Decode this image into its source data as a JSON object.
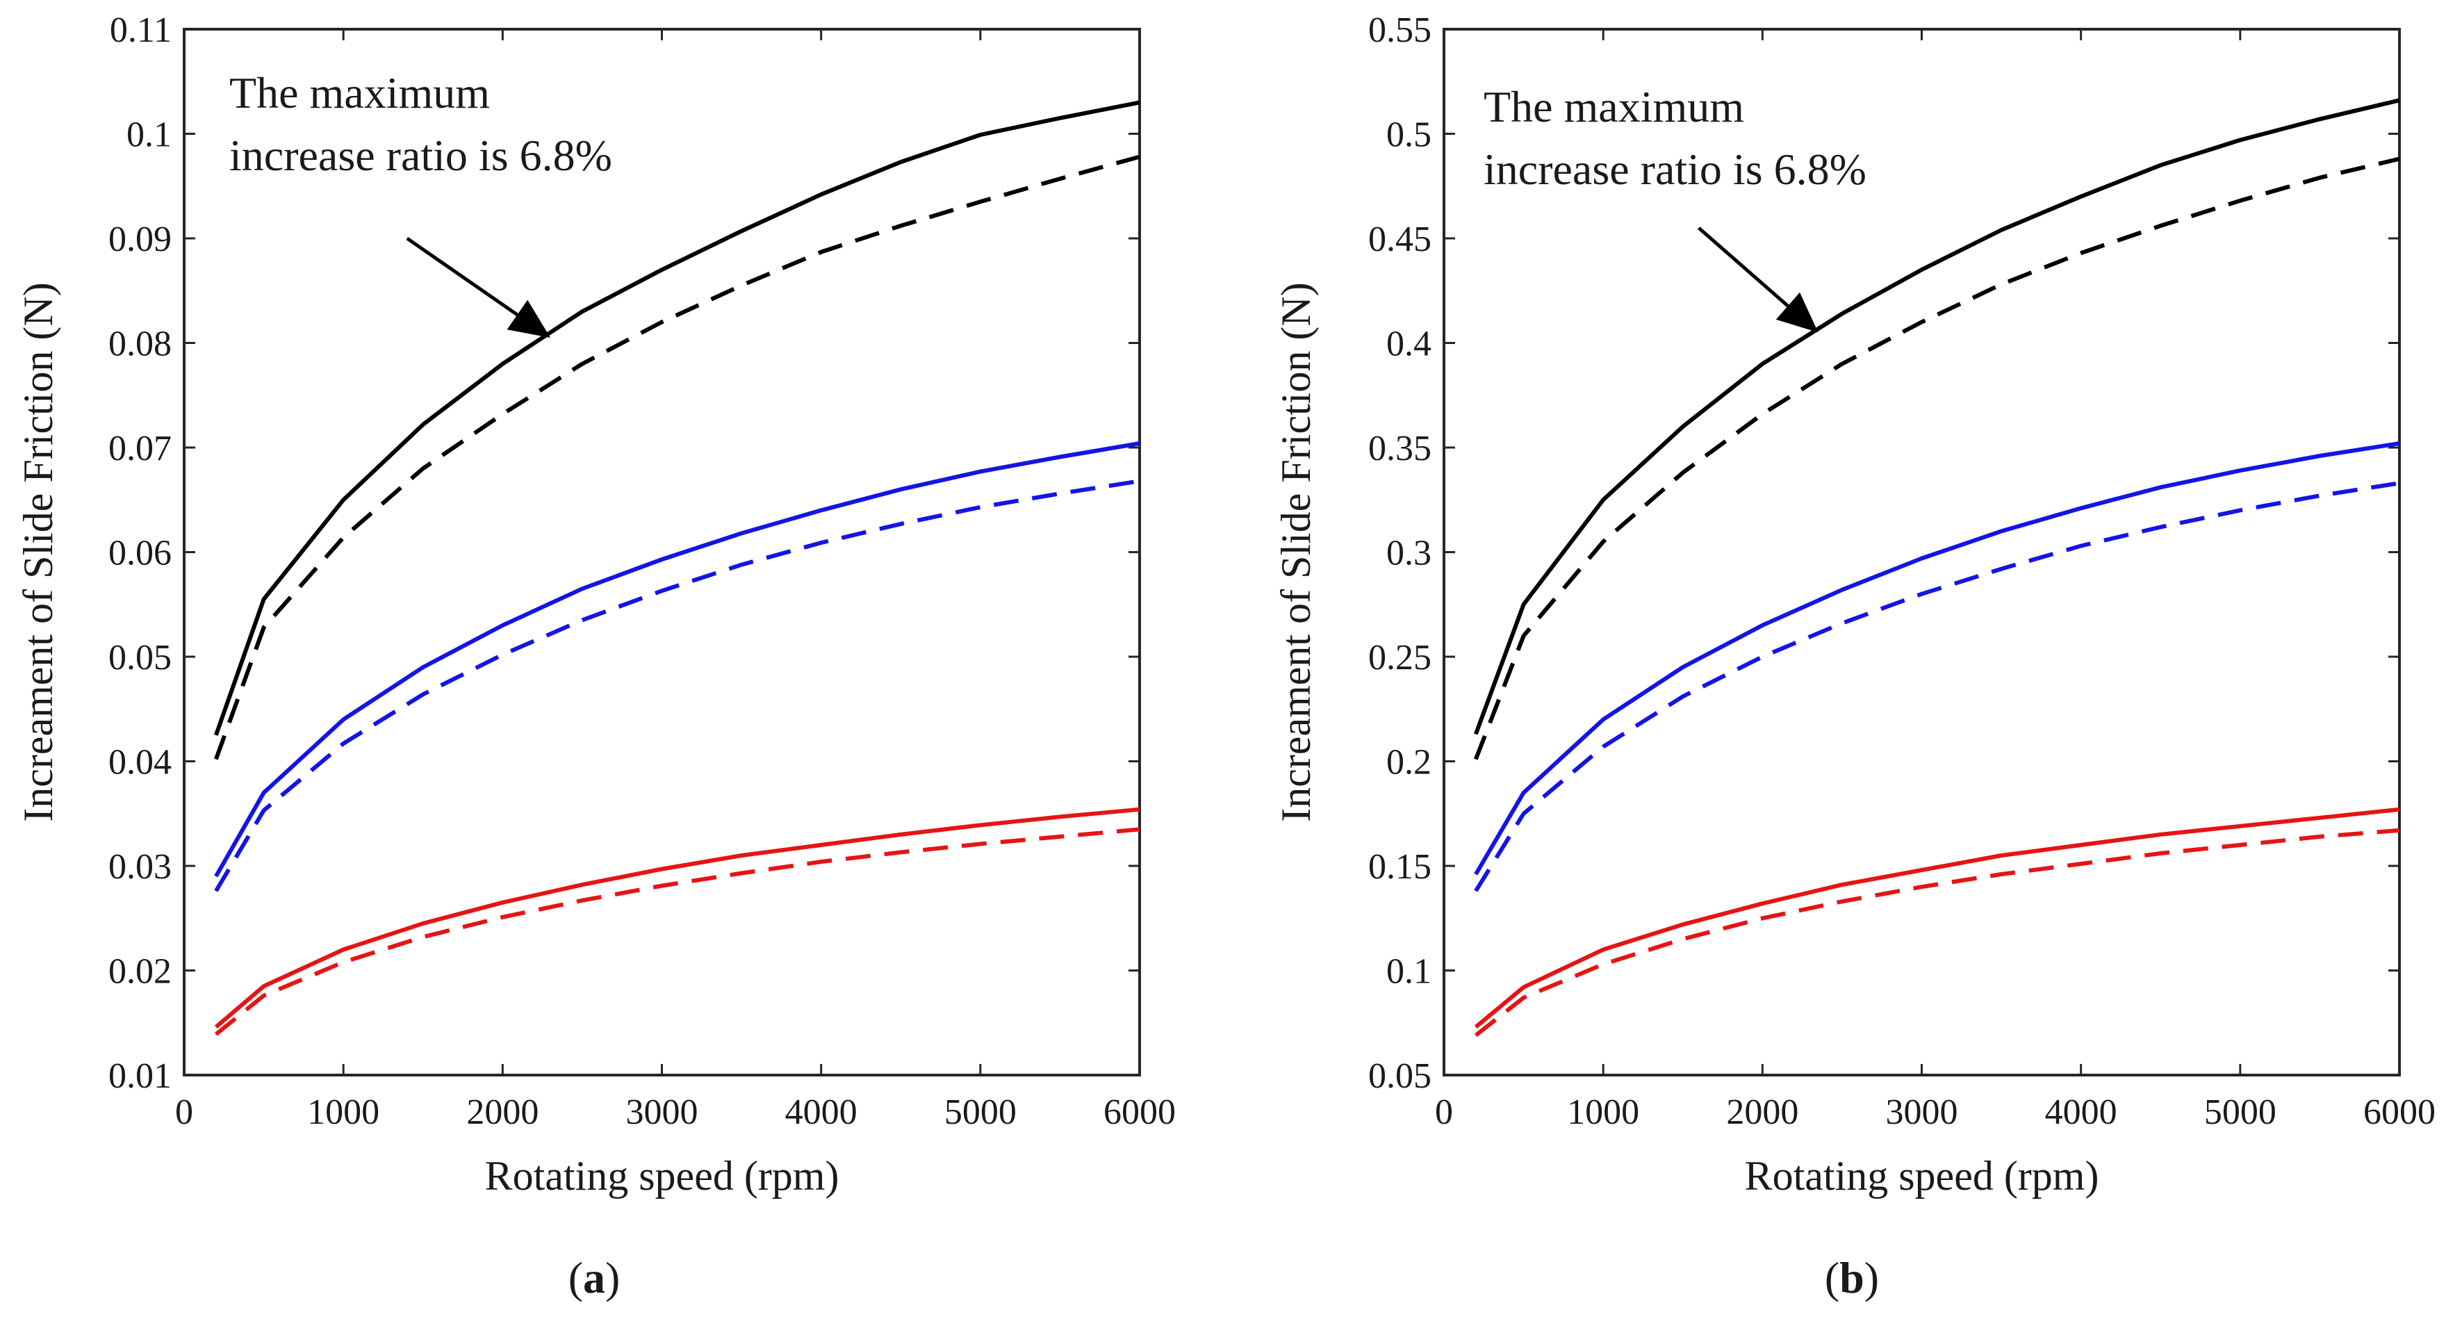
{
  "chart_data": [
    {
      "type": "line",
      "panel_label": "a",
      "xlabel": "Rotating speed (rpm)",
      "ylabel": "Increament of Slide Friction  (N)",
      "xlim": [
        0,
        6000
      ],
      "ylim": [
        0.01,
        0.11
      ],
      "x_ticks": [
        0,
        1000,
        2000,
        3000,
        4000,
        5000,
        6000
      ],
      "x_tick_labels": [
        "0",
        "1000",
        "2000",
        "3000",
        "4000",
        "5000",
        "6000"
      ],
      "y_ticks": [
        0.01,
        0.02,
        0.03,
        0.04,
        0.05,
        0.06,
        0.07,
        0.08,
        0.09,
        0.1,
        0.11
      ],
      "y_tick_labels": [
        "0.01",
        "0.02",
        "0.03",
        "0.04",
        "0.05",
        "0.06",
        "0.07",
        "0.08",
        "0.09",
        "0.1",
        "0.11"
      ],
      "grid": false,
      "annotation": {
        "lines": [
          "The maximum",
          "increase ratio is 6.8%"
        ],
        "arrow_from": [
          1400,
          0.09
        ],
        "arrow_to": [
          2300,
          0.0805
        ]
      },
      "x": [
        200,
        500,
        1000,
        1500,
        2000,
        2500,
        3000,
        3500,
        4000,
        4500,
        5000,
        5500,
        6000
      ],
      "series": [
        {
          "name": "black-solid",
          "color": "#000000",
          "dash": false,
          "values": [
            0.0425,
            0.0555,
            0.065,
            0.0722,
            0.078,
            0.083,
            0.087,
            0.0907,
            0.0942,
            0.0973,
            0.0999,
            0.1015,
            0.103
          ]
        },
        {
          "name": "black-dashed",
          "color": "#000000",
          "dash": true,
          "values": [
            0.0402,
            0.0528,
            0.0614,
            0.068,
            0.0732,
            0.078,
            0.082,
            0.0855,
            0.0887,
            0.0912,
            0.0935,
            0.0957,
            0.0978
          ]
        },
        {
          "name": "blue-solid",
          "color": "#1414e6",
          "dash": false,
          "values": [
            0.029,
            0.037,
            0.044,
            0.049,
            0.053,
            0.0565,
            0.0593,
            0.0618,
            0.064,
            0.066,
            0.0677,
            0.0691,
            0.0704
          ]
        },
        {
          "name": "blue-dashed",
          "color": "#1414e6",
          "dash": true,
          "values": [
            0.0276,
            0.0353,
            0.0417,
            0.0464,
            0.0502,
            0.0535,
            0.0563,
            0.0588,
            0.0609,
            0.0627,
            0.0643,
            0.0656,
            0.0668
          ]
        },
        {
          "name": "red-solid",
          "color": "#e61414",
          "dash": false,
          "values": [
            0.0146,
            0.0185,
            0.022,
            0.0245,
            0.0265,
            0.0282,
            0.0297,
            0.031,
            0.032,
            0.033,
            0.0339,
            0.0347,
            0.0354
          ]
        },
        {
          "name": "red-dashed",
          "color": "#e61414",
          "dash": true,
          "values": [
            0.0139,
            0.0176,
            0.0208,
            0.0232,
            0.0251,
            0.0267,
            0.0281,
            0.0293,
            0.0304,
            0.0313,
            0.0321,
            0.0328,
            0.0335
          ]
        }
      ]
    },
    {
      "type": "line",
      "panel_label": "b",
      "xlabel": "Rotating speed (rpm)",
      "ylabel": "Increament of Slide Friction  (N)",
      "xlim": [
        0,
        6000
      ],
      "ylim": [
        0.05,
        0.55
      ],
      "x_ticks": [
        0,
        1000,
        2000,
        3000,
        4000,
        5000,
        6000
      ],
      "x_tick_labels": [
        "0",
        "1000",
        "2000",
        "3000",
        "4000",
        "5000",
        "6000"
      ],
      "y_ticks": [
        0.05,
        0.1,
        0.15,
        0.2,
        0.25,
        0.3,
        0.35,
        0.4,
        0.45,
        0.5,
        0.55
      ],
      "y_tick_labels": [
        "0.05",
        "0.1",
        "0.15",
        "0.2",
        "0.25",
        "0.3",
        "0.35",
        "0.4",
        "0.45",
        "0.5",
        "0.55"
      ],
      "grid": false,
      "annotation": {
        "lines": [
          "The maximum",
          "increase ratio is 6.8%"
        ],
        "arrow_from": [
          1600,
          0.455
        ],
        "arrow_to": [
          2350,
          0.405
        ]
      },
      "x": [
        200,
        500,
        1000,
        1500,
        2000,
        2500,
        3000,
        3500,
        4000,
        4500,
        5000,
        5500,
        6000
      ],
      "series": [
        {
          "name": "black-solid",
          "color": "#000000",
          "dash": false,
          "values": [
            0.213,
            0.275,
            0.325,
            0.36,
            0.39,
            0.414,
            0.435,
            0.454,
            0.47,
            0.485,
            0.497,
            0.507,
            0.516
          ]
        },
        {
          "name": "black-dashed",
          "color": "#000000",
          "dash": true,
          "values": [
            0.201,
            0.26,
            0.305,
            0.338,
            0.366,
            0.39,
            0.41,
            0.428,
            0.443,
            0.456,
            0.468,
            0.479,
            0.488
          ]
        },
        {
          "name": "blue-solid",
          "color": "#1414e6",
          "dash": false,
          "values": [
            0.146,
            0.185,
            0.22,
            0.245,
            0.265,
            0.282,
            0.297,
            0.31,
            0.321,
            0.331,
            0.339,
            0.346,
            0.352
          ]
        },
        {
          "name": "blue-dashed",
          "color": "#1414e6",
          "dash": true,
          "values": [
            0.138,
            0.175,
            0.207,
            0.231,
            0.25,
            0.266,
            0.28,
            0.292,
            0.303,
            0.312,
            0.32,
            0.327,
            0.333
          ]
        },
        {
          "name": "red-solid",
          "color": "#e61414",
          "dash": false,
          "values": [
            0.073,
            0.092,
            0.11,
            0.122,
            0.132,
            0.141,
            0.148,
            0.155,
            0.16,
            0.165,
            0.169,
            0.173,
            0.177
          ]
        },
        {
          "name": "red-dashed",
          "color": "#e61414",
          "dash": true,
          "values": [
            0.069,
            0.087,
            0.103,
            0.115,
            0.125,
            0.133,
            0.14,
            0.146,
            0.151,
            0.156,
            0.16,
            0.164,
            0.167
          ]
        }
      ]
    }
  ]
}
